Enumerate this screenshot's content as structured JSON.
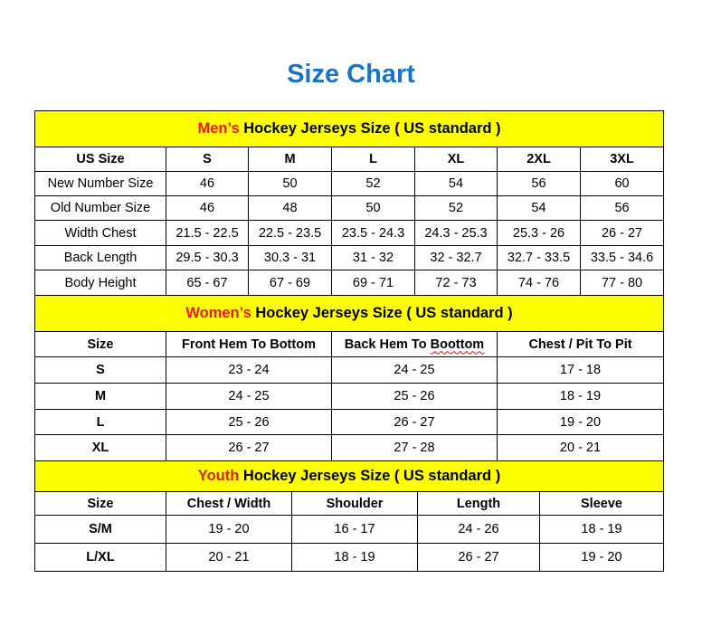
{
  "title": "Size Chart",
  "colors": {
    "title": "#1874c4",
    "header_bg": "#ffff00",
    "accent": "#e8181c"
  },
  "sections": [
    {
      "caption_accent": "Men’s",
      "caption_rest": " Hockey Jerseys Size ( US standard )",
      "headers": [
        "US Size",
        "S",
        "M",
        "L",
        "XL",
        "2XL",
        "3XL"
      ],
      "rows": [
        [
          "New Number Size",
          "46",
          "50",
          "52",
          "54",
          "56",
          "60"
        ],
        [
          "Old Number Size",
          "46",
          "48",
          "50",
          "52",
          "54",
          "56"
        ],
        [
          "Width Chest",
          "21.5 - 22.5",
          "22.5 - 23.5",
          "23.5 - 24.3",
          "24.3 - 25.3",
          "25.3 - 26",
          "26 - 27"
        ],
        [
          "Back Length",
          "29.5 - 30.3",
          "30.3 - 31",
          "31 - 32",
          "32 - 32.7",
          "32.7 - 33.5",
          "33.5 - 34.6"
        ],
        [
          "Body Height",
          "65 - 67",
          "67 - 69",
          "69 - 71",
          "72 - 73",
          "74 - 76",
          "77 - 80"
        ]
      ]
    },
    {
      "caption_accent": "Women’s",
      "caption_rest": " Hockey Jerseys Size ( US standard )",
      "headers": [
        "Size",
        "Front Hem To Bottom",
        "Back Hem To Boottom",
        "Chest / Pit To Pit"
      ],
      "rows": [
        [
          "S",
          "23 - 24",
          "24 - 25",
          "17 - 18"
        ],
        [
          "M",
          "24 - 25",
          "25 - 26",
          "18 - 19"
        ],
        [
          "L",
          "25 - 26",
          "26 - 27",
          "19 - 20"
        ],
        [
          "XL",
          "26 - 27",
          "27 - 28",
          "20 - 21"
        ]
      ]
    },
    {
      "caption_accent": "Youth",
      "caption_rest": " Hockey Jerseys Size ( US standard )",
      "headers": [
        "Size",
        "Chest / Width",
        "Shoulder",
        "Length",
        "Sleeve"
      ],
      "rows": [
        [
          "S/M",
          "19 - 20",
          "16 - 17",
          "24 - 26",
          "18 - 19"
        ],
        [
          "L/XL",
          "20 - 21",
          "18 - 19",
          "26 - 27",
          "19 - 20"
        ]
      ]
    }
  ]
}
